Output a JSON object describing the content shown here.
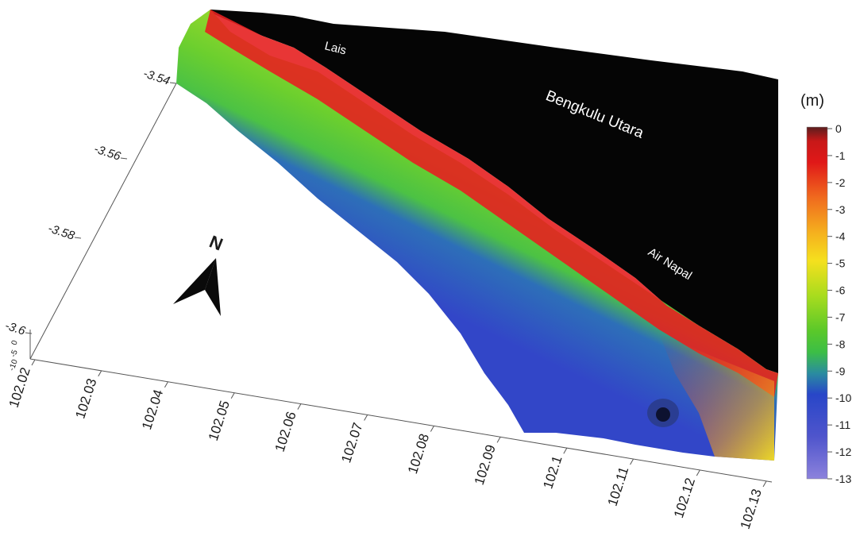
{
  "map": {
    "place_labels": [
      "Lais",
      "Bengkulu Utara",
      "Air Napal"
    ],
    "x_axis_ticks": [
      "102.02",
      "102.03",
      "102.04",
      "102.05",
      "102.06",
      "102.07",
      "102.08",
      "102.09",
      "102.1",
      "102.11",
      "102.12",
      "102.13"
    ],
    "y_axis_ticks": [
      "-3.54",
      "-3.56",
      "-3.58",
      "-3.6"
    ],
    "z_axis_ticks": [
      "0",
      "-5",
      "-10"
    ],
    "north_arrow_label": "N",
    "land_color": "#050505"
  },
  "colorbar": {
    "unit": "(m)",
    "ticks": [
      "0",
      "-1",
      "-2",
      "-3",
      "-4",
      "-5",
      "-6",
      "-7",
      "-8",
      "-9",
      "-10",
      "-11",
      "-12",
      "-13"
    ],
    "stops": [
      "#5a1e1e",
      "#e01818",
      "#f06a1e",
      "#f5a21e",
      "#f5dc1e",
      "#c8e61e",
      "#7ad21e",
      "#3cc83c",
      "#2a82a0",
      "#2846c8",
      "#5a5ad2",
      "#8c82dc"
    ]
  }
}
